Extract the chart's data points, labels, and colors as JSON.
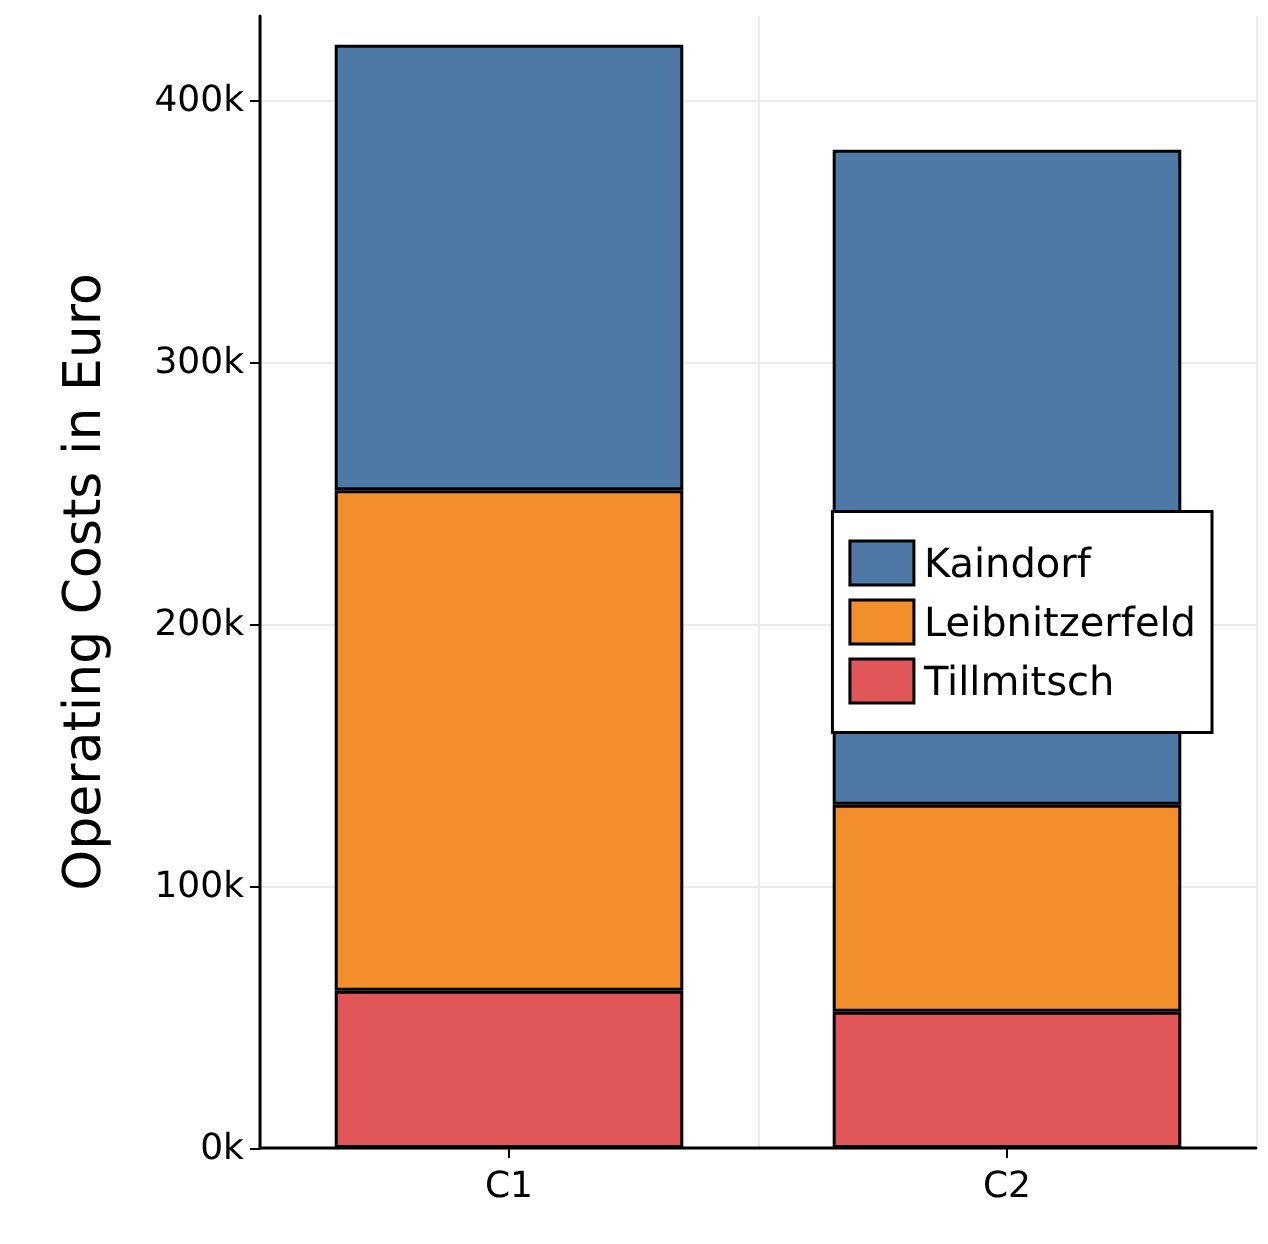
{
  "chart_data": {
    "type": "bar",
    "ylabel": "Operating Costs in Euro",
    "categories": [
      "C1",
      "C2"
    ],
    "stacked": true,
    "series": [
      {
        "name": "Tillmitsch",
        "color": "#e15759",
        "values": [
          60000,
          52000
        ]
      },
      {
        "name": "Leibnitzerfeld",
        "color": "#f28e2b",
        "values": [
          191000,
          79000
        ]
      },
      {
        "name": "Kaindorf",
        "color": "#4e79a7",
        "values": [
          170000,
          250000
        ]
      }
    ],
    "ylim": [
      0,
      432000
    ],
    "yticks": [
      {
        "value": 0,
        "label": "0k"
      },
      {
        "value": 100000,
        "label": "100k"
      },
      {
        "value": 200000,
        "label": "200k"
      },
      {
        "value": 300000,
        "label": "300k"
      },
      {
        "value": 400000,
        "label": "400k"
      }
    ],
    "grid": true,
    "legend": "right"
  }
}
